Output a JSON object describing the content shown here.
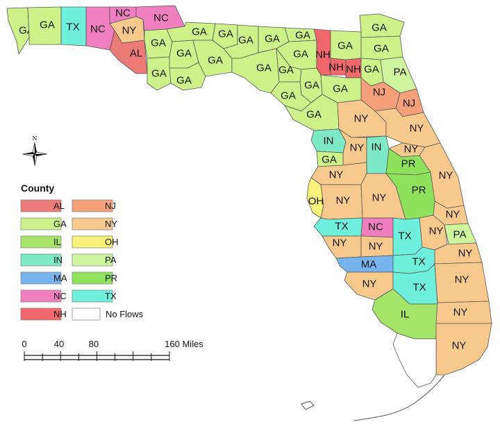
{
  "colors": {
    "AL": "#ec7a76",
    "GA": "#cdf28a",
    "IL": "#a4e468",
    "IN": "#7ee9c6",
    "MA": "#77b3ec",
    "NC": "#f07fbf",
    "NH": "#f0686b",
    "NJ": "#f5a07a",
    "NY": "#f8c98c",
    "OH": "#f7f27a",
    "PA": "#cff59e",
    "PR": "#8fe35c",
    "TX": "#6ff0dc",
    "No Flows": "#ffffff"
  },
  "legend": {
    "title": "County",
    "items": [
      "AL",
      "GA",
      "IL",
      "IN",
      "MA",
      "NC",
      "NH",
      "NJ",
      "NY",
      "OH",
      "PA",
      "PR",
      "TX",
      "No Flows"
    ]
  },
  "scale_bar": {
    "ticks": [
      "0",
      "40",
      "80",
      "160 Miles"
    ]
  },
  "compass": {
    "north_label": "N"
  },
  "counties": [
    {
      "id": "escambia",
      "state": "GA"
    },
    {
      "id": "santa-rosa",
      "state": "GA"
    },
    {
      "id": "okaloosa",
      "state": "TX"
    },
    {
      "id": "walton",
      "state": "NC"
    },
    {
      "id": "holmes",
      "state": "NC"
    },
    {
      "id": "washington",
      "state": "NY"
    },
    {
      "id": "jackson",
      "state": "NC"
    },
    {
      "id": "bay",
      "state": "AL"
    },
    {
      "id": "calhoun",
      "state": "GA"
    },
    {
      "id": "gulf",
      "state": "GA"
    },
    {
      "id": "gadsden",
      "state": "GA"
    },
    {
      "id": "liberty",
      "state": "GA"
    },
    {
      "id": "franklin",
      "state": "GA"
    },
    {
      "id": "leon",
      "state": "GA"
    },
    {
      "id": "wakulla",
      "state": "GA"
    },
    {
      "id": "jefferson",
      "state": "GA"
    },
    {
      "id": "madison",
      "state": "GA"
    },
    {
      "id": "taylor",
      "state": "GA"
    },
    {
      "id": "hamilton",
      "state": "GA"
    },
    {
      "id": "suwannee",
      "state": "GA"
    },
    {
      "id": "lafayette",
      "state": "GA"
    },
    {
      "id": "columbia",
      "state": "NH"
    },
    {
      "id": "baker",
      "state": "GA"
    },
    {
      "id": "nassau",
      "state": "GA"
    },
    {
      "id": "duval",
      "state": "GA"
    },
    {
      "id": "union",
      "state": "NH"
    },
    {
      "id": "bradford",
      "state": "NH"
    },
    {
      "id": "clay",
      "state": "GA"
    },
    {
      "id": "st-johns",
      "state": "PA"
    },
    {
      "id": "dixie",
      "state": "GA"
    },
    {
      "id": "gilchrist",
      "state": "GA"
    },
    {
      "id": "alachua",
      "state": "GA"
    },
    {
      "id": "putnam",
      "state": "NJ"
    },
    {
      "id": "flagler",
      "state": "NJ"
    },
    {
      "id": "levy",
      "state": "GA"
    },
    {
      "id": "marion",
      "state": "NY"
    },
    {
      "id": "volusia",
      "state": "NY"
    },
    {
      "id": "citrus",
      "state": "IN"
    },
    {
      "id": "sumter",
      "state": "NY"
    },
    {
      "id": "lake",
      "state": "IN"
    },
    {
      "id": "seminole",
      "state": "NY"
    },
    {
      "id": "hernando",
      "state": "GA"
    },
    {
      "id": "orange",
      "state": "PR"
    },
    {
      "id": "brevard",
      "state": "NY"
    },
    {
      "id": "pasco",
      "state": "NY"
    },
    {
      "id": "pinellas",
      "state": "OH"
    },
    {
      "id": "hillsborough",
      "state": "NY"
    },
    {
      "id": "polk",
      "state": "NY"
    },
    {
      "id": "osceola",
      "state": "PR"
    },
    {
      "id": "indian-river",
      "state": "NY"
    },
    {
      "id": "manatee",
      "state": "TX"
    },
    {
      "id": "hardee",
      "state": "NC"
    },
    {
      "id": "highlands",
      "state": "TX"
    },
    {
      "id": "okeechobee",
      "state": "NY"
    },
    {
      "id": "st-lucie",
      "state": "PA"
    },
    {
      "id": "sarasota",
      "state": "NY"
    },
    {
      "id": "desoto",
      "state": "NY"
    },
    {
      "id": "martin",
      "state": "NY"
    },
    {
      "id": "charlotte",
      "state": "MA"
    },
    {
      "id": "glades",
      "state": "TX"
    },
    {
      "id": "lee",
      "state": "NY"
    },
    {
      "id": "hendry",
      "state": "TX"
    },
    {
      "id": "palm-beach",
      "state": "NY"
    },
    {
      "id": "collier",
      "state": "IL"
    },
    {
      "id": "broward",
      "state": "NY"
    },
    {
      "id": "miami-dade",
      "state": "NY"
    },
    {
      "id": "monroe",
      "state": "No Flows"
    }
  ]
}
